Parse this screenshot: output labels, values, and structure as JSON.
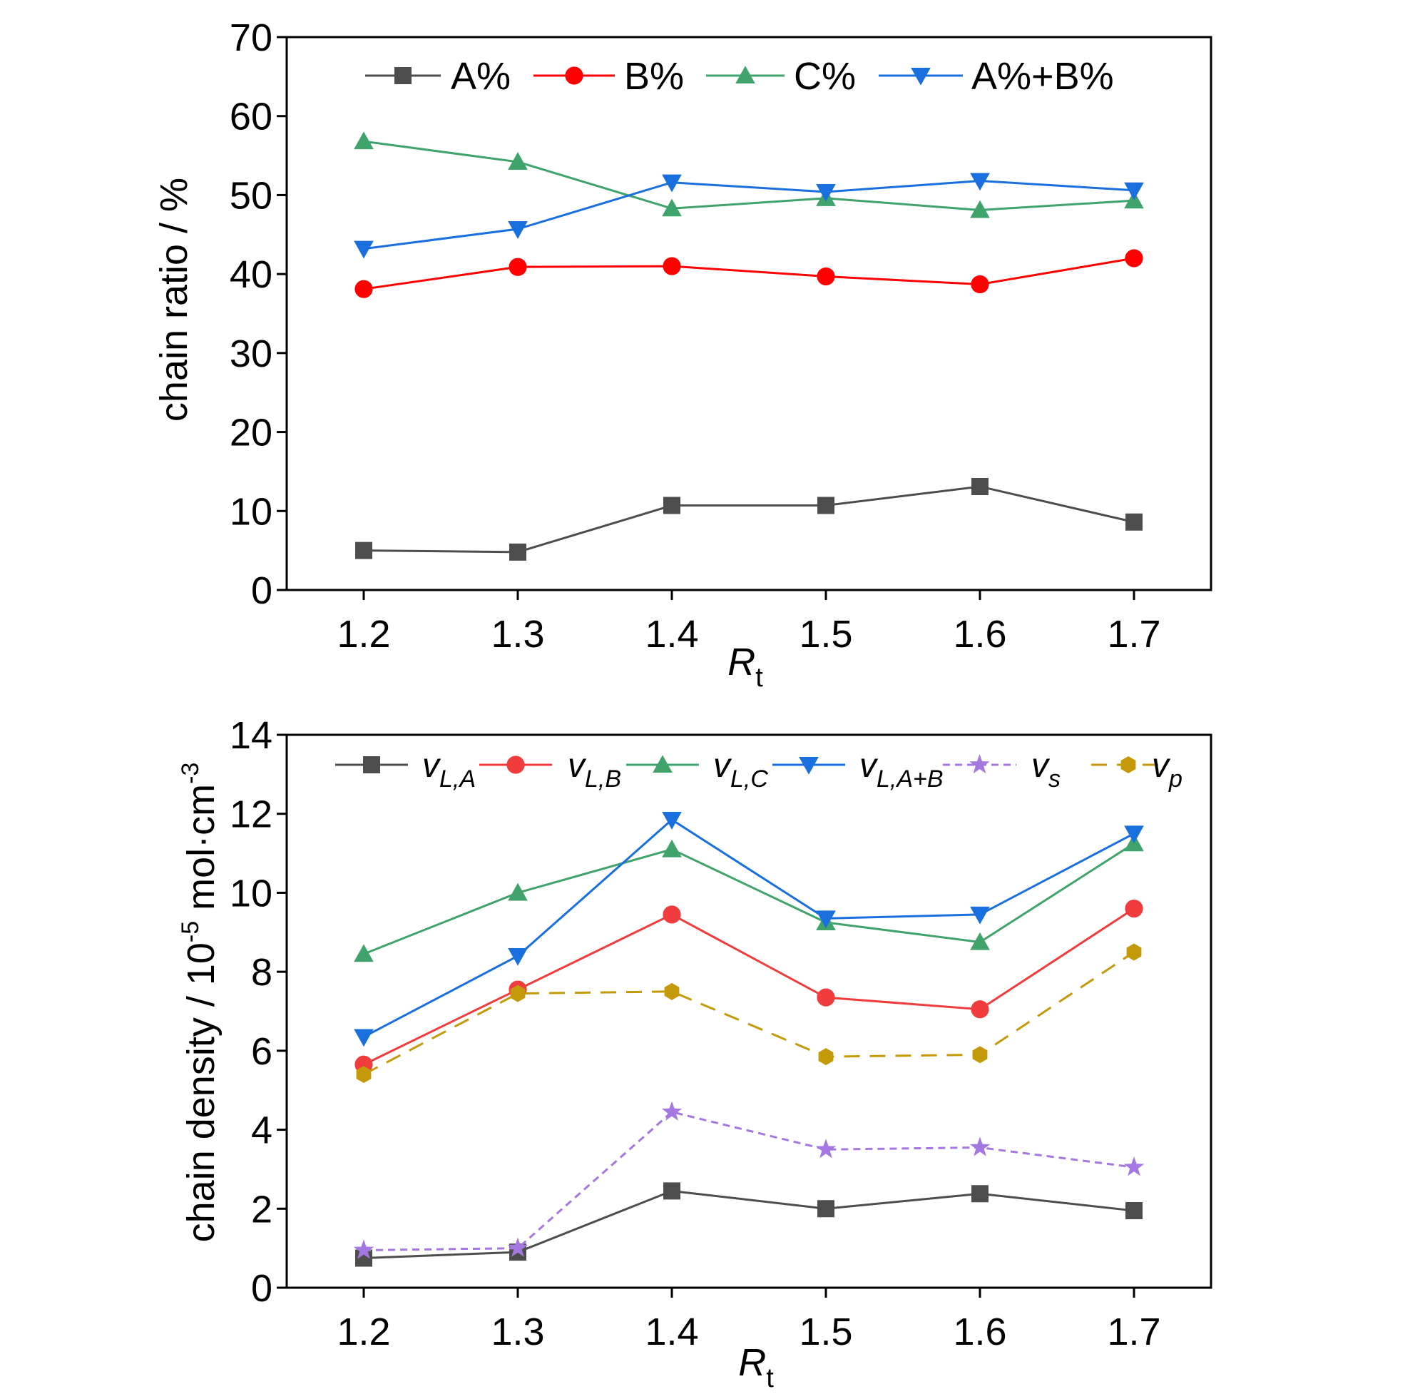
{
  "chart_data": [
    {
      "type": "line",
      "xlabel": "R",
      "xlabel_sub": "t",
      "ylabel": "chain ratio / %",
      "ylim": [
        0,
        70
      ],
      "yticks": [
        "0",
        "10",
        "20",
        "30",
        "40",
        "50",
        "60",
        "70"
      ],
      "ytick_values": [
        0,
        10,
        20,
        30,
        40,
        50,
        60,
        70
      ],
      "x": [
        1.2,
        1.3,
        1.4,
        1.5,
        1.6,
        1.7
      ],
      "xticks": [
        "1.2",
        "1.3",
        "1.4",
        "1.5",
        "1.6",
        "1.7"
      ],
      "legend_placement": "top",
      "series": [
        {
          "name": "A%",
          "color": "#4d4d4d",
          "marker": "square",
          "dash": false,
          "values": [
            5.0,
            4.8,
            10.7,
            10.7,
            13.1,
            8.6
          ]
        },
        {
          "name": "B%",
          "color": "#ff0000",
          "marker": "circle",
          "dash": false,
          "values": [
            38.1,
            40.9,
            41.0,
            39.7,
            38.7,
            42.0
          ]
        },
        {
          "name": "C%",
          "color": "#3fa36b",
          "marker": "triangle-up",
          "dash": false,
          "values": [
            56.8,
            54.2,
            48.3,
            49.6,
            48.1,
            49.3
          ]
        },
        {
          "name": "A%+B%",
          "color": "#1a6fdf",
          "marker": "triangle-down",
          "dash": false,
          "values": [
            43.2,
            45.7,
            51.6,
            50.4,
            51.8,
            50.6
          ]
        }
      ]
    },
    {
      "type": "line",
      "xlabel": "R",
      "xlabel_sub": "t",
      "ylabel": "chain density / 10",
      "ylabel_sup": "-5",
      "ylabel_tail": " mol·cm",
      "ylabel_sup2": "-3",
      "ylim": [
        0,
        14
      ],
      "yticks": [
        "0",
        "2",
        "4",
        "6",
        "8",
        "10",
        "12",
        "14"
      ],
      "ytick_values": [
        0,
        2,
        4,
        6,
        8,
        10,
        12,
        14
      ],
      "x": [
        1.2,
        1.3,
        1.4,
        1.5,
        1.6,
        1.7
      ],
      "xticks": [
        "1.2",
        "1.3",
        "1.4",
        "1.5",
        "1.6",
        "1.7"
      ],
      "legend_placement": "top",
      "series": [
        {
          "name": "v",
          "sub": "L,A",
          "color": "#4d4d4d",
          "marker": "square",
          "dash": false,
          "values": [
            0.75,
            0.9,
            2.45,
            2.0,
            2.38,
            1.95
          ]
        },
        {
          "name": "v",
          "sub": "L,B",
          "color": "#f03c3c",
          "marker": "circle",
          "dash": false,
          "values": [
            5.65,
            7.55,
            9.45,
            7.35,
            7.05,
            9.6
          ]
        },
        {
          "name": "v",
          "sub": "L,C",
          "color": "#3fa36b",
          "marker": "triangle-up",
          "dash": false,
          "values": [
            8.45,
            10.0,
            11.1,
            9.25,
            8.75,
            11.25
          ]
        },
        {
          "name": "v",
          "sub": "L,A+B",
          "color": "#1a6fdf",
          "marker": "triangle-down",
          "dash": false,
          "values": [
            6.35,
            8.4,
            11.85,
            9.35,
            9.45,
            11.5
          ]
        },
        {
          "name": "v",
          "sub": "s",
          "color": "#a478e0",
          "marker": "star",
          "dash": "10,7",
          "values": [
            0.95,
            1.0,
            4.45,
            3.5,
            3.55,
            3.05
          ]
        },
        {
          "name": "v",
          "sub": "p",
          "color": "#c49a0a",
          "marker": "hexagon",
          "dash": "22,14",
          "values": [
            5.4,
            7.45,
            7.5,
            5.85,
            5.9,
            8.5
          ]
        }
      ]
    }
  ]
}
